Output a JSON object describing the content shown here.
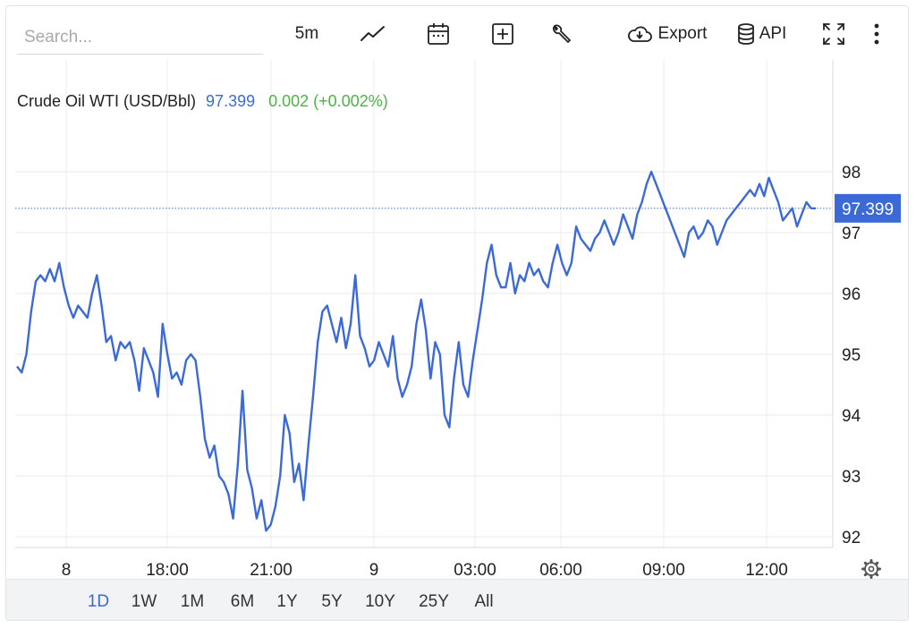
{
  "toolbar": {
    "search_placeholder": "Search...",
    "interval": "5m",
    "export_label": "Export",
    "api_label": "API"
  },
  "quote": {
    "name": "Crude Oil WTI (USD/Bbl)",
    "price": "97.399",
    "change": "0.002 (+0.002%)",
    "price_color": "#3b6ad8",
    "change_color": "#4bb543"
  },
  "ranges": {
    "items": [
      "1D",
      "1W",
      "1M",
      "6M",
      "1Y",
      "5Y",
      "10Y",
      "25Y",
      "All"
    ],
    "selected": "1D"
  },
  "chart_data": {
    "type": "line",
    "series_color": "#3b6ad8",
    "x_tick_labels": [
      "8",
      "18:00",
      "21:00",
      "9",
      "03:00",
      "06:00",
      "09:00",
      "12:00"
    ],
    "y_ticks": [
      92,
      93,
      94,
      95,
      96,
      97,
      98
    ],
    "ylim": [
      91,
      99
    ],
    "current_value": 97.399,
    "current_label": "97.399",
    "grid": true,
    "values": [
      94.8,
      94.7,
      95.0,
      95.7,
      96.2,
      96.3,
      96.2,
      96.4,
      96.2,
      96.5,
      96.1,
      95.8,
      95.6,
      95.8,
      95.7,
      95.6,
      96.0,
      96.3,
      95.8,
      95.2,
      95.3,
      94.9,
      95.2,
      95.1,
      95.2,
      94.9,
      94.4,
      95.1,
      94.9,
      94.7,
      94.3,
      95.5,
      95.0,
      94.6,
      94.7,
      94.5,
      94.9,
      95.0,
      94.9,
      94.3,
      93.6,
      93.3,
      93.5,
      93.0,
      92.9,
      92.7,
      92.3,
      93.2,
      94.4,
      93.1,
      92.8,
      92.3,
      92.6,
      92.1,
      92.2,
      92.5,
      93.0,
      94.0,
      93.7,
      92.9,
      93.2,
      92.6,
      93.5,
      94.3,
      95.2,
      95.7,
      95.8,
      95.5,
      95.2,
      95.6,
      95.1,
      95.5,
      96.3,
      95.3,
      95.1,
      94.8,
      94.9,
      95.2,
      95.0,
      94.8,
      95.3,
      94.6,
      94.3,
      94.5,
      94.8,
      95.5,
      95.9,
      95.4,
      94.6,
      95.2,
      95.0,
      94.0,
      93.8,
      94.6,
      95.2,
      94.5,
      94.3,
      94.9,
      95.4,
      95.9,
      96.5,
      96.8,
      96.3,
      96.1,
      96.1,
      96.5,
      96.0,
      96.3,
      96.2,
      96.5,
      96.3,
      96.4,
      96.2,
      96.1,
      96.5,
      96.8,
      96.5,
      96.3,
      96.5,
      97.1,
      96.9,
      96.8,
      96.7,
      96.9,
      97.0,
      97.2,
      97.0,
      96.8,
      97.0,
      97.3,
      97.1,
      96.9,
      97.3,
      97.5,
      97.8,
      98.0,
      97.8,
      97.6,
      97.4,
      97.2,
      97.0,
      96.8,
      96.6,
      97.0,
      97.1,
      96.9,
      97.0,
      97.2,
      97.1,
      96.8,
      97.0,
      97.2,
      97.3,
      97.4,
      97.5,
      97.6,
      97.7,
      97.6,
      97.8,
      97.6,
      97.9,
      97.7,
      97.5,
      97.2,
      97.3,
      97.4,
      97.1,
      97.3,
      97.5,
      97.4,
      97.399
    ]
  },
  "tooltip_text": ""
}
